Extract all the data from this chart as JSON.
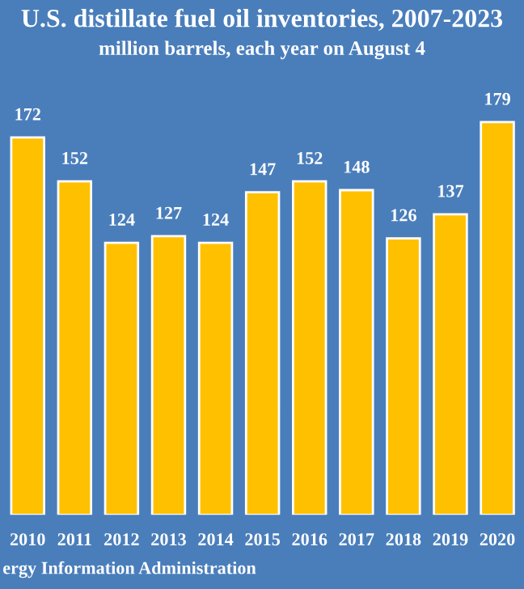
{
  "chart_data": {
    "type": "bar",
    "title": "U.S. distillate fuel oil inventories, 2007-2023",
    "subtitle": "million barrels, each year on August 4",
    "categories": [
      "2010",
      "2011",
      "2012",
      "2013",
      "2014",
      "2015",
      "2016",
      "2017",
      "2018",
      "2019",
      "2020"
    ],
    "values": [
      172,
      152,
      124,
      127,
      124,
      147,
      152,
      148,
      126,
      137,
      179
    ],
    "color": "#ffc000",
    "data_labels": true,
    "annotations": [
      "ergy Information Administration"
    ]
  }
}
